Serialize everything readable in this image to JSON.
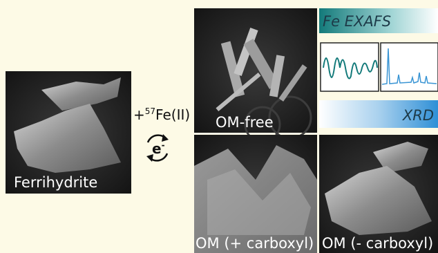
{
  "reaction": {
    "sign": "+",
    "isotope": "57",
    "species": "Fe(II)"
  },
  "electron": {
    "symbol": "e",
    "charge": "-"
  },
  "panels": {
    "start": "Ferrihydrite",
    "om_free": "OM-free",
    "om_plus": "OM (+ carboxyl)",
    "om_minus": "OM (- carboxyl)"
  },
  "techniques": {
    "exafs": "Fe EXAFS",
    "xrd": "XRD"
  }
}
